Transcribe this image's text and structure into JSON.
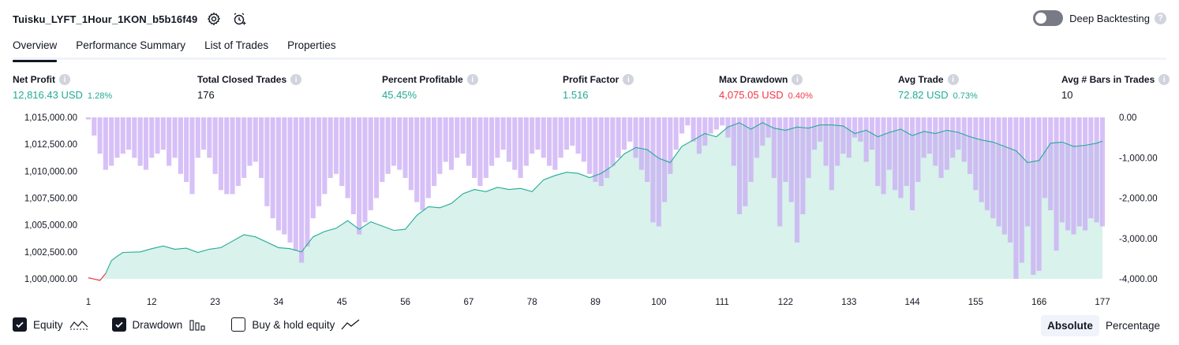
{
  "header": {
    "title": "Tuisku_LYFT_1Hour_1KON_b5b16f49",
    "settings_icon": "gear-icon",
    "alert_icon": "add-alarm-icon"
  },
  "deep_backtesting": {
    "label": "Deep Backtesting",
    "enabled": false,
    "help": "?"
  },
  "tabs": [
    {
      "label": "Overview",
      "active": true
    },
    {
      "label": "Performance Summary",
      "active": false
    },
    {
      "label": "List of Trades",
      "active": false
    },
    {
      "label": "Properties",
      "active": false
    }
  ],
  "metrics": {
    "net_profit": {
      "label": "Net Profit",
      "value": "12,816.43 USD",
      "pct": "1.28%"
    },
    "total_closed_trades": {
      "label": "Total Closed Trades",
      "value": "176"
    },
    "percent_profitable": {
      "label": "Percent Profitable",
      "value": "45.45%"
    },
    "profit_factor": {
      "label": "Profit Factor",
      "value": "1.516"
    },
    "max_drawdown": {
      "label": "Max Drawdown",
      "value": "4,075.05 USD",
      "pct": "0.40%"
    },
    "avg_trade": {
      "label": "Avg Trade",
      "value": "72.82 USD",
      "pct": "0.73%"
    },
    "avg_bars": {
      "label": "Avg # Bars in Trades",
      "value": "10"
    }
  },
  "colors": {
    "equity_line": "#22ab94",
    "equity_fill": "#d9f2ec",
    "equity_negative": "#f23645",
    "drawdown_bar": "#c8a8f4",
    "positive": "#22ab94",
    "negative": "#f23645"
  },
  "chart_data": {
    "type": "area",
    "left_axis": {
      "ylim": [
        1000000,
        1015000
      ],
      "ticks": [
        "1,000,000.00",
        "1,002,500.00",
        "1,005,000.00",
        "1,007,500.00",
        "1,010,000.00",
        "1,012,500.00",
        "1,015,000.00"
      ]
    },
    "right_axis": {
      "ylim": [
        -4000,
        0
      ],
      "ticks": [
        "0.00",
        "-1,000.00",
        "-2,000.00",
        "-3,000.00",
        "-4,000.00"
      ]
    },
    "x_ticks": [
      1,
      12,
      23,
      34,
      45,
      56,
      67,
      78,
      89,
      100,
      111,
      122,
      133,
      144,
      155,
      166,
      177
    ],
    "equity": [
      [
        1,
        1000100
      ],
      [
        2,
        999980
      ],
      [
        3,
        999850
      ],
      [
        4,
        1000500
      ],
      [
        5,
        1001700
      ],
      [
        6,
        1002100
      ],
      [
        7,
        1002450
      ],
      [
        10,
        1002500
      ],
      [
        12,
        1002800
      ],
      [
        14,
        1003050
      ],
      [
        16,
        1002750
      ],
      [
        18,
        1002850
      ],
      [
        20,
        1002450
      ],
      [
        22,
        1002750
      ],
      [
        24,
        1002900
      ],
      [
        26,
        1003500
      ],
      [
        28,
        1004100
      ],
      [
        30,
        1003900
      ],
      [
        32,
        1003400
      ],
      [
        34,
        1002900
      ],
      [
        36,
        1002800
      ],
      [
        38,
        1002500
      ],
      [
        40,
        1003900
      ],
      [
        42,
        1004400
      ],
      [
        44,
        1004700
      ],
      [
        46,
        1005400
      ],
      [
        48,
        1004600
      ],
      [
        50,
        1005300
      ],
      [
        52,
        1004900
      ],
      [
        54,
        1004500
      ],
      [
        56,
        1004600
      ],
      [
        58,
        1005900
      ],
      [
        60,
        1006700
      ],
      [
        62,
        1006600
      ],
      [
        64,
        1007000
      ],
      [
        66,
        1007900
      ],
      [
        68,
        1008300
      ],
      [
        70,
        1008100
      ],
      [
        72,
        1008500
      ],
      [
        74,
        1008300
      ],
      [
        76,
        1008400
      ],
      [
        78,
        1008100
      ],
      [
        80,
        1009200
      ],
      [
        82,
        1009600
      ],
      [
        84,
        1009900
      ],
      [
        86,
        1009800
      ],
      [
        88,
        1009400
      ],
      [
        90,
        1009800
      ],
      [
        92,
        1010500
      ],
      [
        94,
        1011600
      ],
      [
        96,
        1012200
      ],
      [
        98,
        1012000
      ],
      [
        100,
        1011200
      ],
      [
        102,
        1010800
      ],
      [
        104,
        1012300
      ],
      [
        106,
        1012900
      ],
      [
        108,
        1013500
      ],
      [
        110,
        1013200
      ],
      [
        112,
        1014100
      ],
      [
        114,
        1014500
      ],
      [
        116,
        1013900
      ],
      [
        118,
        1014500
      ],
      [
        120,
        1014000
      ],
      [
        122,
        1013800
      ],
      [
        124,
        1014100
      ],
      [
        126,
        1014000
      ],
      [
        128,
        1014300
      ],
      [
        130,
        1014300
      ],
      [
        132,
        1014200
      ],
      [
        134,
        1013500
      ],
      [
        136,
        1013800
      ],
      [
        138,
        1013200
      ],
      [
        140,
        1013600
      ],
      [
        142,
        1013900
      ],
      [
        144,
        1013300
      ],
      [
        146,
        1013700
      ],
      [
        148,
        1013500
      ],
      [
        150,
        1013800
      ],
      [
        152,
        1013600
      ],
      [
        154,
        1013200
      ],
      [
        156,
        1012900
      ],
      [
        158,
        1012700
      ],
      [
        160,
        1012300
      ],
      [
        162,
        1011900
      ],
      [
        164,
        1010800
      ],
      [
        166,
        1011000
      ],
      [
        168,
        1012600
      ],
      [
        170,
        1012700
      ],
      [
        172,
        1012300
      ],
      [
        174,
        1012400
      ],
      [
        176,
        1012600
      ],
      [
        177,
        1012800
      ]
    ],
    "drawdown": [
      -50,
      -450,
      -900,
      -1300,
      -1200,
      -1000,
      -900,
      -800,
      -1000,
      -1200,
      -1300,
      -1000,
      -900,
      -800,
      -1200,
      -1000,
      -1400,
      -1600,
      -1900,
      -1000,
      -800,
      -1000,
      -1400,
      -1800,
      -1900,
      -1900,
      -1700,
      -1500,
      -1200,
      -1100,
      -1500,
      -2200,
      -2500,
      -2800,
      -2900,
      -3100,
      -3300,
      -3600,
      -3200,
      -2500,
      -2200,
      -1900,
      -1500,
      -1400,
      -1700,
      -2000,
      -2400,
      -2900,
      -2600,
      -2300,
      -2000,
      -1600,
      -1400,
      -1200,
      -1300,
      -1500,
      -1800,
      -2100,
      -2300,
      -2000,
      -1700,
      -1400,
      -1100,
      -1300,
      -1000,
      -900,
      -1200,
      -1500,
      -1700,
      -1500,
      -1200,
      -1000,
      -800,
      -1100,
      -1300,
      -1500,
      -1200,
      -900,
      -800,
      -1000,
      -1200,
      -1300,
      -1000,
      -800,
      -700,
      -900,
      -1100,
      -1400,
      -1600,
      -1700,
      -1500,
      -1200,
      -1000,
      -800,
      -600,
      -1000,
      -1300,
      -1600,
      -2600,
      -2700,
      -2100,
      -1400,
      -800,
      -400,
      -200,
      -600,
      -900,
      -700,
      -400,
      -300,
      -200,
      -500,
      -1200,
      -2400,
      -2200,
      -1600,
      -1000,
      -700,
      -500,
      -1500,
      -2700,
      -1600,
      -2100,
      -3100,
      -2400,
      -1500,
      -800,
      -600,
      -1200,
      -1800,
      -1200,
      -900,
      -1000,
      -500,
      -600,
      -1100,
      -800,
      -1700,
      -1900,
      -1300,
      -1800,
      -2000,
      -1700,
      -2300,
      -1600,
      -1000,
      -900,
      -1200,
      -1500,
      -1300,
      -1000,
      -800,
      -1100,
      -1400,
      -1800,
      -2100,
      -2300,
      -2500,
      -2700,
      -2900,
      -3100,
      -4000,
      -3600,
      -2700,
      -3900,
      -3800,
      -2000,
      -2300,
      -3300,
      -2600,
      -2800,
      -2900,
      -2700,
      -2800,
      -2500,
      -2600,
      -2700
    ]
  },
  "legend": [
    {
      "label": "Equity",
      "checked": true,
      "icon": "equity-line-icon"
    },
    {
      "label": "Drawdown",
      "checked": true,
      "icon": "drawdown-bars-icon"
    },
    {
      "label": "Buy & hold equity",
      "checked": false,
      "icon": "trend-line-icon"
    }
  ],
  "view_mode": {
    "absolute": "Absolute",
    "percentage": "Percentage",
    "selected": "absolute"
  }
}
